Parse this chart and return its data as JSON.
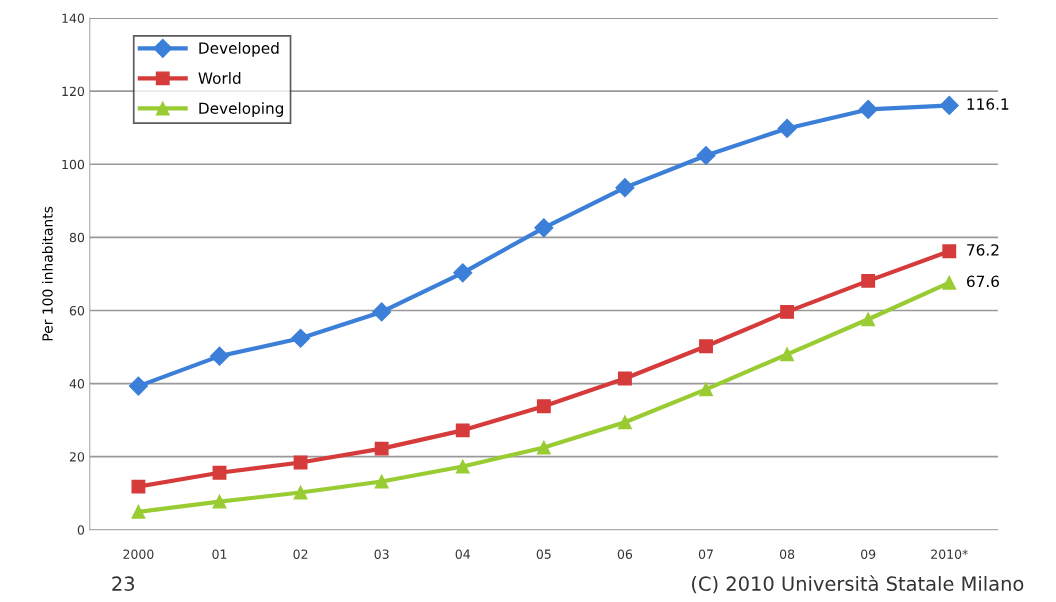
{
  "chart_data": {
    "type": "line",
    "ylabel": "Per 100 inhabitants",
    "categories": [
      "2000",
      "01",
      "02",
      "03",
      "04",
      "05",
      "06",
      "07",
      "08",
      "09",
      "2010*"
    ],
    "series": [
      {
        "name": "Developed",
        "color": "#3c7fd8",
        "marker": "diamond",
        "values": [
          39.3,
          47.5,
          52.4,
          59.6,
          70.3,
          82.6,
          93.6,
          102.4,
          109.8,
          115,
          116.1
        ],
        "value_labels": [
          null,
          null,
          null,
          null,
          null,
          null,
          null,
          null,
          null,
          null,
          "116.1"
        ]
      },
      {
        "name": "World",
        "color": "#d63b3b",
        "marker": "square",
        "values": [
          11.8,
          15.6,
          18.4,
          22.2,
          27.2,
          33.8,
          41.4,
          50.2,
          59.6,
          68.1,
          76.2
        ],
        "value_labels": [
          null,
          null,
          null,
          null,
          null,
          null,
          null,
          null,
          null,
          null,
          "76.2"
        ]
      },
      {
        "name": "Developing",
        "color": "#99cc33",
        "marker": "triangle",
        "values": [
          4.9,
          7.7,
          10.2,
          13.2,
          17.3,
          22.5,
          29.4,
          38.4,
          48,
          57.6,
          67.6
        ],
        "value_labels": [
          null,
          null,
          null,
          null,
          null,
          null,
          null,
          null,
          null,
          null,
          "67.6"
        ]
      }
    ],
    "ylim": [
      0,
      140
    ],
    "yticks": [
      0,
      20,
      40,
      60,
      80,
      100,
      120,
      140
    ],
    "grid": "y",
    "legend": "top left",
    "line_style": "solid",
    "annotations": [
      "23",
      "(C) 2010 Università Statale Milano"
    ]
  }
}
